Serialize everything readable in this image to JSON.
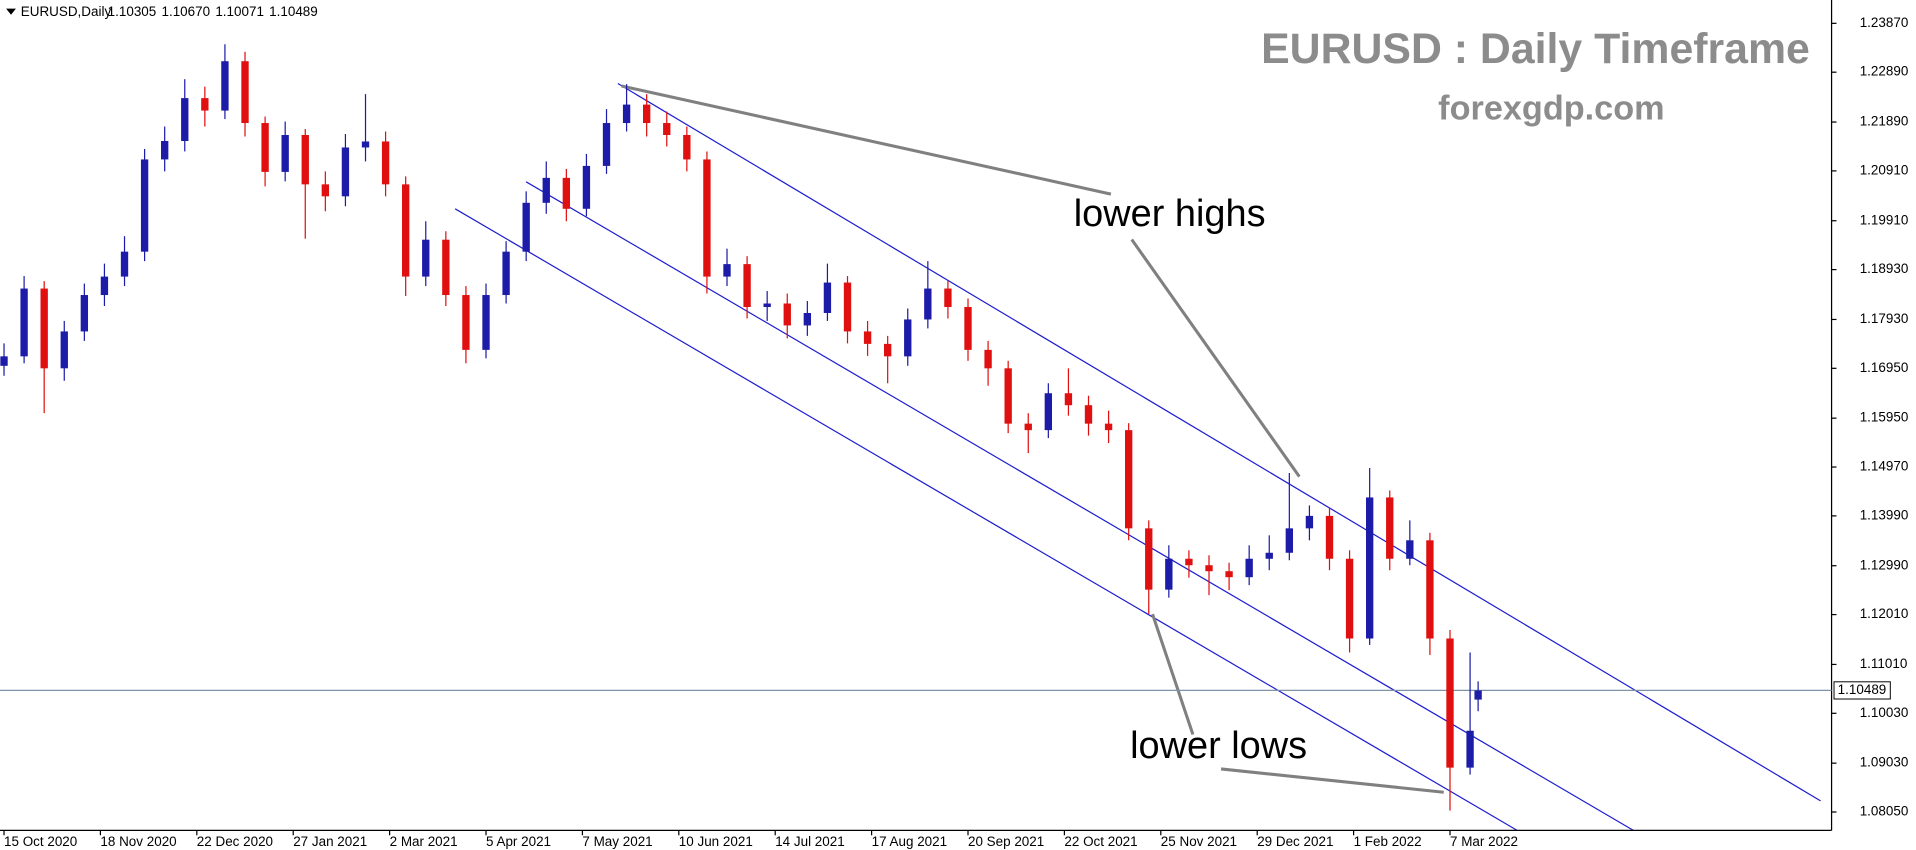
{
  "header": {
    "symbol": "EURUSD,Daily",
    "ohlc": [
      "1.10305",
      "1.10670",
      "1.10071",
      "1.10489"
    ]
  },
  "chart_data": {
    "type": "candlestick",
    "title": "EURUSD : Daily Timeframe",
    "subtitle": "forexgdp.com",
    "annotations": [
      "lower highs",
      "lower lows"
    ],
    "x": [
      0,
      5,
      10,
      15,
      20,
      25,
      30,
      35,
      40,
      45,
      50,
      55,
      60,
      65,
      70,
      75,
      80,
      85,
      90,
      95,
      100,
      105,
      110,
      115,
      120,
      125,
      130,
      135,
      140,
      145,
      150,
      155,
      160,
      165,
      170,
      175,
      180,
      185,
      190,
      195,
      200,
      205,
      210,
      215,
      220,
      225,
      230,
      235,
      240,
      245,
      250,
      255,
      260,
      265,
      270,
      275,
      280,
      285,
      290,
      295,
      300,
      305,
      310,
      315,
      320,
      325,
      330,
      335,
      340,
      345,
      350,
      355,
      360,
      365,
      367
    ],
    "open": [
      1.17,
      1.1719,
      1.1855,
      1.1695,
      1.1769,
      1.1842,
      1.1879,
      1.1929,
      1.2114,
      1.2151,
      1.2237,
      1.2212,
      1.2311,
      1.2187,
      1.2089,
      1.2163,
      1.2064,
      1.204,
      1.2138,
      1.215,
      1.2064,
      1.1879,
      1.1953,
      1.1842,
      1.1732,
      1.1842,
      1.1929,
      1.2027,
      1.2077,
      1.2015,
      1.2101,
      1.2187,
      1.2224,
      1.2187,
      1.2163,
      1.2114,
      1.1879,
      1.1904,
      1.1818,
      1.1825,
      1.1781,
      1.1806,
      1.1867,
      1.1769,
      1.1744,
      1.1719,
      1.1793,
      1.1855,
      1.1818,
      1.1732,
      1.1695,
      1.1584,
      1.1571,
      1.1645,
      1.1621,
      1.1584,
      1.1571,
      1.1374,
      1.1251,
      1.1313,
      1.13,
      1.1288,
      1.1276,
      1.1313,
      1.1325,
      1.1374,
      1.1399,
      1.1313,
      1.1153,
      1.1436,
      1.1313,
      1.135,
      1.1153,
      1.0894,
      1.10305
    ],
    "high": [
      1.1745,
      1.188,
      1.187,
      1.179,
      1.1865,
      1.1905,
      1.196,
      1.2135,
      1.218,
      1.2275,
      1.226,
      1.2345,
      1.233,
      1.22,
      1.219,
      1.2175,
      1.209,
      1.2165,
      1.2245,
      1.217,
      1.208,
      1.199,
      1.197,
      1.186,
      1.1865,
      1.195,
      1.205,
      1.211,
      1.2095,
      1.2125,
      1.2215,
      1.2265,
      1.2245,
      1.221,
      1.218,
      1.213,
      1.1935,
      1.192,
      1.185,
      1.1845,
      1.183,
      1.1905,
      1.188,
      1.179,
      1.176,
      1.1815,
      1.191,
      1.187,
      1.1835,
      1.175,
      1.171,
      1.1605,
      1.1665,
      1.1695,
      1.164,
      1.161,
      1.1585,
      1.139,
      1.134,
      1.133,
      1.132,
      1.1305,
      1.134,
      1.136,
      1.1485,
      1.142,
      1.1415,
      1.133,
      1.1495,
      1.145,
      1.139,
      1.1365,
      1.117,
      1.1125,
      1.1067
    ],
    "low": [
      1.168,
      1.1705,
      1.1605,
      1.167,
      1.175,
      1.182,
      1.186,
      1.191,
      1.209,
      1.213,
      1.218,
      1.2195,
      1.216,
      1.206,
      1.207,
      1.1955,
      1.201,
      1.202,
      1.211,
      1.204,
      1.184,
      1.186,
      1.182,
      1.1705,
      1.1715,
      1.1825,
      1.191,
      1.2005,
      1.199,
      1.2,
      1.2085,
      1.217,
      1.216,
      1.214,
      1.209,
      1.1845,
      1.186,
      1.1795,
      1.179,
      1.1755,
      1.176,
      1.179,
      1.1745,
      1.172,
      1.1665,
      1.17,
      1.1775,
      1.1795,
      1.171,
      1.166,
      1.1565,
      1.1525,
      1.1555,
      1.16,
      1.156,
      1.1545,
      1.135,
      1.1202,
      1.1235,
      1.1275,
      1.124,
      1.125,
      1.126,
      1.129,
      1.131,
      1.135,
      1.129,
      1.1125,
      1.114,
      1.129,
      1.13,
      1.112,
      1.0808,
      1.088,
      1.10071
    ],
    "close": [
      1.1719,
      1.1855,
      1.1695,
      1.1769,
      1.1842,
      1.1879,
      1.1929,
      1.2114,
      1.2151,
      1.2237,
      1.2212,
      1.2311,
      1.2187,
      1.2089,
      1.2163,
      1.2064,
      1.204,
      1.2138,
      1.215,
      1.2064,
      1.1879,
      1.1953,
      1.1842,
      1.1732,
      1.1842,
      1.1929,
      1.2027,
      1.2077,
      1.2015,
      1.2101,
      1.2187,
      1.2224,
      1.2187,
      1.2163,
      1.2114,
      1.1879,
      1.1904,
      1.1818,
      1.1825,
      1.1781,
      1.1806,
      1.1867,
      1.1769,
      1.1744,
      1.1719,
      1.1793,
      1.1855,
      1.1818,
      1.1732,
      1.1695,
      1.1584,
      1.1571,
      1.1645,
      1.1621,
      1.1584,
      1.1571,
      1.1374,
      1.1251,
      1.1313,
      1.13,
      1.1288,
      1.1276,
      1.1313,
      1.1325,
      1.1374,
      1.1399,
      1.1313,
      1.1153,
      1.1436,
      1.1313,
      1.135,
      1.1153,
      1.0894,
      1.0968,
      1.10489
    ],
    "up_color": "#1c1ca8",
    "down_color": "#e01010",
    "xlim": [
      -1,
      455
    ],
    "xticks": [
      {
        "value": 0,
        "label": "15 Oct 2020"
      },
      {
        "value": 24,
        "label": "18 Nov 2020"
      },
      {
        "value": 48,
        "label": "22 Dec 2020"
      },
      {
        "value": 72,
        "label": "27 Jan 2021"
      },
      {
        "value": 96,
        "label": "2 Mar 2021"
      },
      {
        "value": 120,
        "label": "5 Apr 2021"
      },
      {
        "value": 144,
        "label": "7 May 2021"
      },
      {
        "value": 168,
        "label": "10 Jun 2021"
      },
      {
        "value": 192,
        "label": "14 Jul 2021"
      },
      {
        "value": 216,
        "label": "17 Aug 2021"
      },
      {
        "value": 240,
        "label": "20 Sep 2021"
      },
      {
        "value": 264,
        "label": "22 Oct 2021"
      },
      {
        "value": 288,
        "label": "25 Nov 2021"
      },
      {
        "value": 312,
        "label": "29 Dec 2021"
      },
      {
        "value": 336,
        "label": "1 Feb 2022"
      },
      {
        "value": 360,
        "label": "7 Mar 2022"
      }
    ],
    "ylim": [
      1.07682,
      1.24338
    ],
    "yticks": [
      {
        "value": 1.2387,
        "label": "1.23870"
      },
      {
        "value": 1.2289,
        "label": "1.22890"
      },
      {
        "value": 1.2189,
        "label": "1.21890"
      },
      {
        "value": 1.2091,
        "label": "1.20910"
      },
      {
        "value": 1.1991,
        "label": "1.19910"
      },
      {
        "value": 1.1893,
        "label": "1.18930"
      },
      {
        "value": 1.1793,
        "label": "1.17930"
      },
      {
        "value": 1.1695,
        "label": "1.16950"
      },
      {
        "value": 1.1595,
        "label": "1.15950"
      },
      {
        "value": 1.1497,
        "label": "1.14970"
      },
      {
        "value": 1.1399,
        "label": "1.13990"
      },
      {
        "value": 1.1299,
        "label": "1.12990"
      },
      {
        "value": 1.1201,
        "label": "1.12010"
      },
      {
        "value": 1.1101,
        "label": "1.11010"
      },
      {
        "value": 1.1003,
        "label": "1.10030"
      },
      {
        "value": 1.0903,
        "label": "1.09030"
      },
      {
        "value": 1.0805,
        "label": "1.08050"
      }
    ],
    "current_price": {
      "value": 1.10489,
      "label": "1.10489"
    }
  }
}
